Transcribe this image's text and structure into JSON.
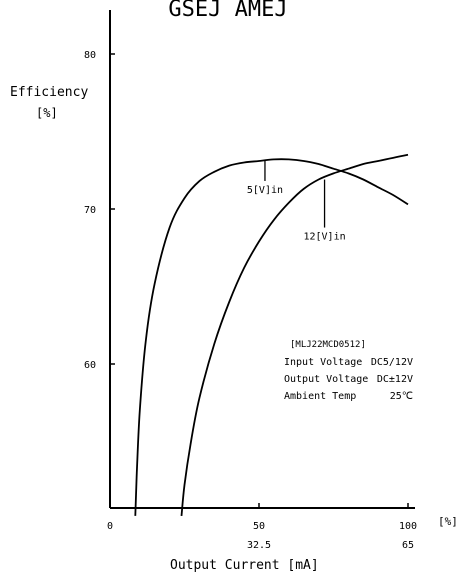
{
  "header_text": "GSEJ AMEJ",
  "chart_data": {
    "type": "line",
    "ylabel": "Efficiency",
    "ylabel_unit": "[%]",
    "xlabel": "Output Current [mA]",
    "x_unit": "[%]",
    "xlim": [
      0,
      100
    ],
    "ylim": [
      50,
      83
    ],
    "y_ticks": [
      {
        "value": 80,
        "label": "80"
      },
      {
        "value": 70,
        "label": "70"
      },
      {
        "value": 60,
        "label": "60"
      }
    ],
    "x_ticks": [
      {
        "value": 0,
        "label": "0",
        "sublabel": ""
      },
      {
        "value": 50,
        "label": "50",
        "sublabel": "32.5"
      },
      {
        "value": 100,
        "label": "100",
        "sublabel": "65"
      }
    ],
    "series": [
      {
        "name": "5[V]in",
        "x": [
          8.5,
          9,
          10,
          12,
          15,
          20,
          25,
          30,
          35,
          40,
          45,
          50,
          55,
          60,
          65,
          70,
          75,
          80,
          85,
          90,
          95,
          100
        ],
        "y": [
          50.2,
          53,
          57,
          61.5,
          65.2,
          68.8,
          70.7,
          71.8,
          72.4,
          72.8,
          73.0,
          73.1,
          73.2,
          73.2,
          73.1,
          72.9,
          72.6,
          72.3,
          71.9,
          71.4,
          70.9,
          70.3
        ]
      },
      {
        "name": "12[V]in",
        "x": [
          24,
          25,
          27,
          30,
          35,
          40,
          45,
          50,
          55,
          60,
          65,
          70,
          75,
          80,
          85,
          90,
          95,
          100
        ],
        "y": [
          50.2,
          52.2,
          54.8,
          57.8,
          61.3,
          64.0,
          66.2,
          67.9,
          69.3,
          70.4,
          71.3,
          71.9,
          72.3,
          72.6,
          72.9,
          73.1,
          73.3,
          73.5
        ]
      }
    ],
    "annotations": [
      {
        "text": "5[V]in",
        "series": 0
      },
      {
        "text": "12[V]in",
        "series": 1
      }
    ],
    "info_box": {
      "model": "[MLJ22MCD0512]",
      "rows": [
        {
          "label": "Input Voltage",
          "value": "DC5/12V"
        },
        {
          "label": "Output Voltage",
          "value": "DC±12V"
        },
        {
          "label": "Ambient Temp",
          "value": "25℃"
        }
      ]
    },
    "grid": false
  },
  "colors": {
    "line": "#000000",
    "background": "#ffffff"
  }
}
